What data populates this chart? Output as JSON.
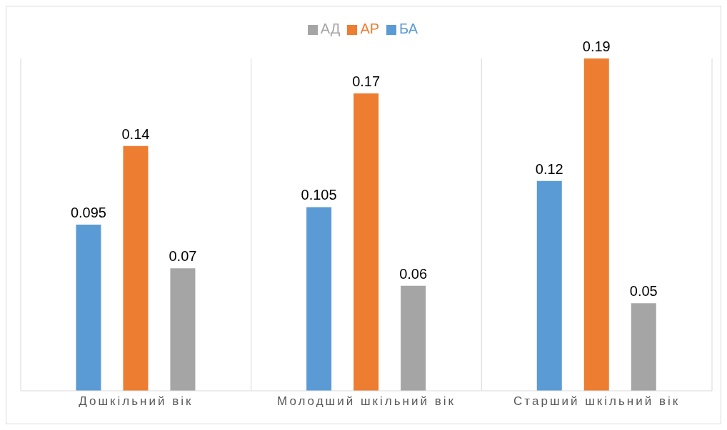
{
  "chart_data": {
    "type": "bar",
    "categories": [
      "Дошкільний вік",
      "Молодший шкільний вік",
      "Старший шкільний вік"
    ],
    "series": [
      {
        "name": "БА",
        "color": "#5b9bd5",
        "values": [
          0.095,
          0.105,
          0.12
        ]
      },
      {
        "name": "АР",
        "color": "#ed7d31",
        "values": [
          0.14,
          0.17,
          0.19
        ]
      },
      {
        "name": "АД",
        "color": "#a5a5a5",
        "values": [
          0.07,
          0.06,
          0.05
        ]
      }
    ],
    "data_labels": true,
    "grid": "x",
    "legend": "top"
  }
}
